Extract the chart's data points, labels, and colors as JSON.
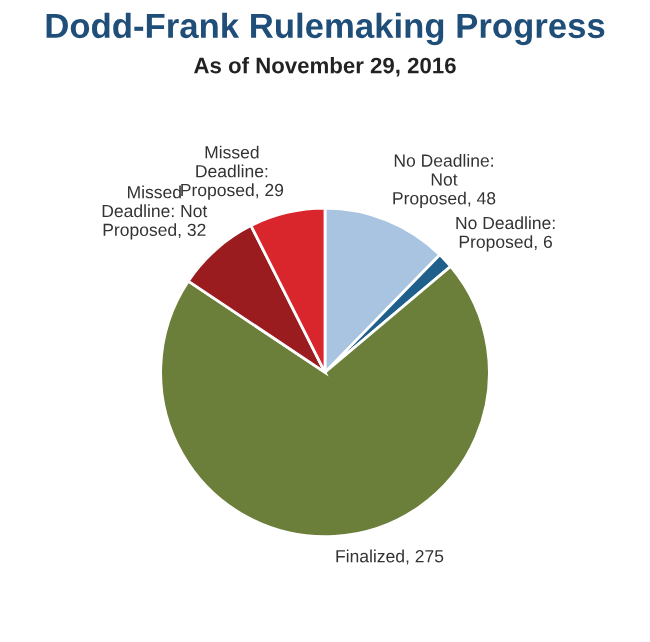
{
  "chart_data": {
    "type": "pie",
    "title": "Dodd-Frank Rulemaking Progress",
    "subtitle": "As of November 29, 2016",
    "categories": [
      "No Deadline:\nNot\nProposed, 48",
      "No Deadline:\nProposed, 6",
      "Finalized, 275",
      "Missed\nDeadline: Not\nProposed, 32",
      "Missed\nDeadline:\nProposed, 29"
    ],
    "values": [
      48,
      6,
      275,
      32,
      29
    ],
    "colors": [
      "#a9c4e0",
      "#1f5f8b",
      "#6b7f3a",
      "#9b1c1f",
      "#d9262c"
    ]
  }
}
